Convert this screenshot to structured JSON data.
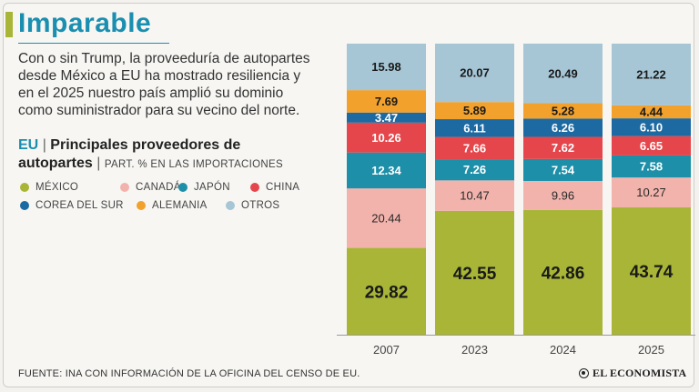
{
  "header": {
    "title": "Imparable",
    "intro": "Con o sin Trump, la proveeduría de autopartes desde México a EU ha mostrado resiliencia y en el 2025 nuestro país amplió su dominio como suministrador para su vecino del norte."
  },
  "subtitle": {
    "region": "EU",
    "separator": "|",
    "text": "Principales proveedores de autopartes",
    "unit": "PART. % EN LAS IMPORTACIONES"
  },
  "legend": [
    {
      "label": "MÉXICO",
      "color": "#a8b536"
    },
    {
      "label": "CANADÁ",
      "color": "#f2b3ac"
    },
    {
      "label": "JAPÓN",
      "color": "#1d8fa8"
    },
    {
      "label": "CHINA",
      "color": "#e5464b"
    },
    {
      "label": "COREA DEL SUR",
      "color": "#1d6aa2"
    },
    {
      "label": "ALEMANIA",
      "color": "#f2a12c"
    },
    {
      "label": "OTROS",
      "color": "#a6c6d6"
    }
  ],
  "footer": {
    "source": "FUENTE: INA CON INFORMACIÓN DE LA OFICINA DEL CENSO DE EU.",
    "brand": "EL ECONOMISTA"
  },
  "chart_data": {
    "type": "bar",
    "stacked": true,
    "orientation": "vertical",
    "title": "Principales proveedores de autopartes",
    "ylabel": "PART. % EN LAS IMPORTACIONES",
    "xlabel": "",
    "ylim": [
      0,
      100
    ],
    "categories": [
      "2007",
      "2023",
      "2024",
      "2025"
    ],
    "series": [
      {
        "name": "MÉXICO",
        "color": "#a8b536",
        "text_color": "#1a1a1a",
        "values": [
          29.82,
          42.55,
          42.86,
          43.74
        ],
        "labels": [
          "29.82",
          "42.55",
          "42.86",
          "43.74"
        ]
      },
      {
        "name": "CANADÁ",
        "color": "#f2b3ac",
        "text_color": "#2a2a2a",
        "values": [
          20.44,
          10.47,
          9.96,
          10.27
        ],
        "labels": [
          "20.44",
          "10.47",
          "9.96",
          "10.27"
        ]
      },
      {
        "name": "JAPÓN",
        "color": "#1d8fa8",
        "text_color": "#ffffff",
        "values": [
          12.34,
          7.26,
          7.54,
          7.58
        ],
        "labels": [
          "12.34",
          "7.26",
          "7.54",
          "7.58"
        ]
      },
      {
        "name": "CHINA",
        "color": "#e5464b",
        "text_color": "#ffffff",
        "values": [
          10.26,
          7.66,
          7.62,
          6.65
        ],
        "labels": [
          "10.26",
          "7.66",
          "7.62",
          "6.65"
        ]
      },
      {
        "name": "COREA DEL SUR",
        "color": "#1d6aa2",
        "text_color": "#ffffff",
        "values": [
          3.47,
          6.11,
          6.26,
          6.1
        ],
        "labels": [
          "3.47",
          "6.11",
          "6.26",
          "6.10"
        ]
      },
      {
        "name": "ALEMANIA",
        "color": "#f2a12c",
        "text_color": "#1a1a1a",
        "values": [
          7.69,
          5.89,
          5.28,
          4.44
        ],
        "labels": [
          "7.69",
          "5.89",
          "5.28",
          "4.44"
        ]
      },
      {
        "name": "OTROS",
        "color": "#a6c6d6",
        "text_color": "#1a1a1a",
        "values": [
          15.98,
          20.07,
          20.49,
          21.22
        ],
        "labels": [
          "15.98",
          "20.07",
          "20.49",
          "21.22"
        ]
      }
    ]
  }
}
